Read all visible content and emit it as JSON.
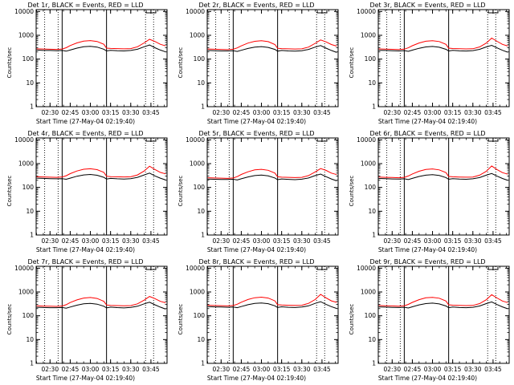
{
  "colors": {
    "events": "#000000",
    "lld": "#ff0000",
    "background": "#ffffff"
  },
  "chart_data": [
    {
      "type": "line",
      "title": "Det 1r, BLACK = Events, RED = LLD",
      "xlabel": "Start Time (27-May-04 02:19:40)",
      "ylabel": "Counts/sec",
      "xlim": [
        "02:19:40",
        "03:57:00"
      ],
      "ylim": [
        1,
        12000
      ],
      "yscale": "log",
      "xticks": [
        "02:30",
        "02:45",
        "03:00",
        "03:15",
        "03:30",
        "03:45"
      ],
      "yticks": [
        "1",
        "10",
        "100",
        "1000",
        "10000"
      ],
      "vlines_solid": [
        "02:39",
        "03:12"
      ],
      "vlines_dotted": [
        "02:26",
        "02:36",
        "03:41",
        "03:47"
      ],
      "x": [
        "02:20",
        "02:25",
        "02:30",
        "02:35",
        "02:39",
        "02:42",
        "02:45",
        "02:50",
        "02:55",
        "03:00",
        "03:05",
        "03:10",
        "03:12",
        "03:15",
        "03:20",
        "03:25",
        "03:30",
        "03:35",
        "03:40",
        "03:44",
        "03:48",
        "03:52",
        "03:56"
      ],
      "series": [
        {
          "name": "Events",
          "values": [
            240,
            230,
            230,
            225,
            230,
            215,
            240,
            290,
            330,
            345,
            320,
            260,
            220,
            235,
            225,
            220,
            230,
            260,
            330,
            390,
            300,
            240,
            200
          ]
        },
        {
          "name": "LLD",
          "values": [
            270,
            265,
            260,
            255,
            265,
            300,
            370,
            480,
            570,
            600,
            550,
            420,
            290,
            280,
            275,
            270,
            275,
            330,
            480,
            680,
            550,
            420,
            360
          ]
        }
      ]
    },
    {
      "type": "line",
      "title": "Det 2r, BLACK = Events, RED = LLD",
      "xlabel": "Start Time (27-May-04 02:19:40)",
      "ylabel": "Counts/sec",
      "xlim": [
        "02:19:40",
        "03:57:00"
      ],
      "ylim": [
        1,
        12000
      ],
      "yscale": "log",
      "xticks": [
        "02:30",
        "02:45",
        "03:00",
        "03:15",
        "03:30",
        "03:45"
      ],
      "yticks": [
        "1",
        "10",
        "100",
        "1000",
        "10000"
      ],
      "vlines_solid": [
        "02:39",
        "03:12"
      ],
      "vlines_dotted": [
        "02:26",
        "02:36",
        "03:41",
        "03:47"
      ],
      "x": [
        "02:20",
        "02:25",
        "02:30",
        "02:35",
        "02:39",
        "02:42",
        "02:45",
        "02:50",
        "02:55",
        "03:00",
        "03:05",
        "03:10",
        "03:12",
        "03:15",
        "03:20",
        "03:25",
        "03:30",
        "03:35",
        "03:40",
        "03:44",
        "03:48",
        "03:52",
        "03:56"
      ],
      "series": [
        {
          "name": "Events",
          "values": [
            230,
            225,
            220,
            220,
            225,
            210,
            235,
            280,
            320,
            335,
            310,
            255,
            215,
            230,
            220,
            215,
            225,
            255,
            320,
            370,
            290,
            230,
            190
          ]
        },
        {
          "name": "LLD",
          "values": [
            265,
            260,
            255,
            250,
            260,
            295,
            360,
            470,
            560,
            590,
            540,
            410,
            285,
            275,
            270,
            265,
            270,
            320,
            460,
            640,
            530,
            410,
            350
          ]
        }
      ]
    },
    {
      "type": "line",
      "title": "Det 3r, BLACK = Events, RED = LLD",
      "xlabel": "Start Time (27-May-04 02:19:40)",
      "ylabel": "Counts/sec",
      "xlim": [
        "02:19:40",
        "03:57:00"
      ],
      "ylim": [
        1,
        12000
      ],
      "yscale": "log",
      "xticks": [
        "02:30",
        "02:45",
        "03:00",
        "03:15",
        "03:30",
        "03:45"
      ],
      "yticks": [
        "1",
        "10",
        "100",
        "1000",
        "10000"
      ],
      "vlines_solid": [
        "02:39",
        "03:12"
      ],
      "vlines_dotted": [
        "02:26",
        "02:36",
        "03:41",
        "03:47"
      ],
      "x": [
        "02:20",
        "02:25",
        "02:30",
        "02:35",
        "02:39",
        "02:42",
        "02:45",
        "02:50",
        "02:55",
        "03:00",
        "03:05",
        "03:10",
        "03:12",
        "03:15",
        "03:20",
        "03:25",
        "03:30",
        "03:35",
        "03:40",
        "03:44",
        "03:48",
        "03:52",
        "03:56"
      ],
      "series": [
        {
          "name": "Events",
          "values": [
            235,
            230,
            225,
            220,
            228,
            212,
            238,
            285,
            325,
            340,
            315,
            258,
            218,
            232,
            222,
            218,
            228,
            258,
            325,
            380,
            295,
            235,
            195
          ]
        },
        {
          "name": "LLD",
          "values": [
            268,
            262,
            258,
            252,
            262,
            298,
            365,
            475,
            565,
            595,
            545,
            415,
            288,
            278,
            272,
            268,
            272,
            325,
            470,
            760,
            560,
            415,
            355
          ]
        }
      ]
    },
    {
      "type": "line",
      "title": "Det 4r, BLACK = Events, RED = LLD",
      "xlabel": "Start Time (27-May-04 02:19:40)",
      "ylabel": "Counts/sec",
      "xlim": [
        "02:19:40",
        "03:57:00"
      ],
      "ylim": [
        1,
        12000
      ],
      "yscale": "log",
      "xticks": [
        "02:30",
        "02:45",
        "03:00",
        "03:15",
        "03:30",
        "03:45"
      ],
      "yticks": [
        "1",
        "10",
        "100",
        "1000",
        "10000"
      ],
      "vlines_solid": [
        "02:39",
        "03:12"
      ],
      "vlines_dotted": [
        "02:26",
        "02:36",
        "03:41",
        "03:47"
      ],
      "x": [
        "02:20",
        "02:25",
        "02:30",
        "02:35",
        "02:39",
        "02:42",
        "02:45",
        "02:50",
        "02:55",
        "03:00",
        "03:05",
        "03:10",
        "03:12",
        "03:15",
        "03:20",
        "03:25",
        "03:30",
        "03:35",
        "03:40",
        "03:44",
        "03:48",
        "03:52",
        "03:56"
      ],
      "series": [
        {
          "name": "Events",
          "values": [
            245,
            240,
            235,
            230,
            235,
            220,
            245,
            295,
            335,
            350,
            325,
            265,
            225,
            240,
            230,
            225,
            235,
            265,
            335,
            400,
            305,
            245,
            205
          ]
        },
        {
          "name": "LLD",
          "values": [
            280,
            275,
            270,
            265,
            275,
            310,
            380,
            490,
            580,
            610,
            560,
            430,
            295,
            285,
            280,
            275,
            280,
            335,
            490,
            780,
            570,
            430,
            370
          ]
        }
      ]
    },
    {
      "type": "line",
      "title": "Det 5r, BLACK = Events, RED = LLD",
      "xlabel": "Start Time (27-May-04 02:19:40)",
      "ylabel": "Counts/sec",
      "xlim": [
        "02:19:40",
        "03:57:00"
      ],
      "ylim": [
        1,
        12000
      ],
      "yscale": "log",
      "xticks": [
        "02:30",
        "02:45",
        "03:00",
        "03:15",
        "03:30",
        "03:45"
      ],
      "yticks": [
        "1",
        "10",
        "100",
        "1000",
        "10000"
      ],
      "vlines_solid": [
        "02:39",
        "03:12"
      ],
      "vlines_dotted": [
        "02:26",
        "02:36",
        "03:41",
        "03:47"
      ],
      "x": [
        "02:20",
        "02:25",
        "02:30",
        "02:35",
        "02:39",
        "02:42",
        "02:45",
        "02:50",
        "02:55",
        "03:00",
        "03:05",
        "03:10",
        "03:12",
        "03:15",
        "03:20",
        "03:25",
        "03:30",
        "03:35",
        "03:40",
        "03:44",
        "03:48",
        "03:52",
        "03:56"
      ],
      "series": [
        {
          "name": "Events",
          "values": [
            225,
            220,
            215,
            215,
            220,
            205,
            230,
            275,
            315,
            330,
            305,
            250,
            212,
            228,
            218,
            212,
            222,
            250,
            315,
            365,
            285,
            228,
            188
          ]
        },
        {
          "name": "LLD",
          "values": [
            255,
            250,
            245,
            240,
            250,
            285,
            350,
            455,
            545,
            575,
            525,
            400,
            280,
            270,
            265,
            260,
            265,
            315,
            450,
            620,
            520,
            400,
            345
          ]
        }
      ]
    },
    {
      "type": "line",
      "title": "Det 6r, BLACK = Events, RED = LLD",
      "xlabel": "Start Time (27-May-04 02:19:40)",
      "ylabel": "Counts/sec",
      "xlim": [
        "02:19:40",
        "03:57:00"
      ],
      "ylim": [
        1,
        12000
      ],
      "yscale": "log",
      "xticks": [
        "02:30",
        "02:45",
        "03:00",
        "03:15",
        "03:30",
        "03:45"
      ],
      "yticks": [
        "1",
        "10",
        "100",
        "1000",
        "10000"
      ],
      "vlines_solid": [
        "02:39",
        "03:12"
      ],
      "vlines_dotted": [
        "02:26",
        "02:36",
        "03:41",
        "03:47"
      ],
      "x": [
        "02:20",
        "02:25",
        "02:30",
        "02:35",
        "02:39",
        "02:42",
        "02:45",
        "02:50",
        "02:55",
        "03:00",
        "03:05",
        "03:10",
        "03:12",
        "03:15",
        "03:20",
        "03:25",
        "03:30",
        "03:35",
        "03:40",
        "03:44",
        "03:48",
        "03:52",
        "03:56"
      ],
      "series": [
        {
          "name": "Events",
          "values": [
            238,
            232,
            228,
            224,
            230,
            214,
            240,
            288,
            328,
            342,
            318,
            260,
            220,
            234,
            224,
            220,
            230,
            260,
            328,
            385,
            298,
            238,
            198
          ]
        },
        {
          "name": "LLD",
          "values": [
            272,
            266,
            262,
            256,
            266,
            302,
            368,
            478,
            568,
            598,
            548,
            418,
            290,
            280,
            274,
            270,
            274,
            328,
            475,
            800,
            565,
            418,
            358
          ]
        }
      ]
    },
    {
      "type": "line",
      "title": "Det 7r, BLACK = Events, RED = LLD",
      "xlabel": "Start Time (27-May-04 02:19:40)",
      "ylabel": "Counts/sec",
      "xlim": [
        "02:19:40",
        "03:57:00"
      ],
      "ylim": [
        1,
        12000
      ],
      "yscale": "log",
      "xticks": [
        "02:30",
        "02:45",
        "03:00",
        "03:15",
        "03:30",
        "03:45"
      ],
      "yticks": [
        "1",
        "10",
        "100",
        "1000",
        "10000"
      ],
      "vlines_solid": [
        "02:39",
        "03:12"
      ],
      "vlines_dotted": [
        "02:26",
        "02:36",
        "03:41",
        "03:47"
      ],
      "x": [
        "02:20",
        "02:25",
        "02:30",
        "02:35",
        "02:39",
        "02:42",
        "02:45",
        "02:50",
        "02:55",
        "03:00",
        "03:05",
        "03:10",
        "03:12",
        "03:15",
        "03:20",
        "03:25",
        "03:30",
        "03:35",
        "03:40",
        "03:44",
        "03:48",
        "03:52",
        "03:56"
      ],
      "series": [
        {
          "name": "Events",
          "values": [
            228,
            222,
            218,
            218,
            222,
            208,
            232,
            278,
            318,
            332,
            308,
            252,
            214,
            230,
            220,
            214,
            224,
            252,
            318,
            372,
            288,
            230,
            190
          ]
        },
        {
          "name": "LLD",
          "values": [
            262,
            256,
            252,
            248,
            258,
            292,
            358,
            465,
            555,
            585,
            535,
            405,
            284,
            274,
            268,
            262,
            268,
            318,
            455,
            650,
            525,
            405,
            350
          ]
        }
      ]
    },
    {
      "type": "line",
      "title": "Det 8r, BLACK = Events, RED = LLD",
      "xlabel": "Start Time (27-May-04 02:19:40)",
      "ylabel": "Counts/sec",
      "xlim": [
        "02:19:40",
        "03:57:00"
      ],
      "ylim": [
        1,
        12000
      ],
      "yscale": "log",
      "xticks": [
        "02:30",
        "02:45",
        "03:00",
        "03:15",
        "03:30",
        "03:45"
      ],
      "yticks": [
        "1",
        "10",
        "100",
        "1000",
        "10000"
      ],
      "vlines_solid": [
        "02:39",
        "03:12"
      ],
      "vlines_dotted": [
        "02:26",
        "02:36",
        "03:41",
        "03:47"
      ],
      "x": [
        "02:20",
        "02:25",
        "02:30",
        "02:35",
        "02:39",
        "02:42",
        "02:45",
        "02:50",
        "02:55",
        "03:00",
        "03:05",
        "03:10",
        "03:12",
        "03:15",
        "03:20",
        "03:25",
        "03:30",
        "03:35",
        "03:40",
        "03:44",
        "03:48",
        "03:52",
        "03:56"
      ],
      "series": [
        {
          "name": "Events",
          "values": [
            242,
            236,
            232,
            228,
            234,
            218,
            244,
            292,
            332,
            346,
            322,
            262,
            222,
            238,
            228,
            222,
            232,
            262,
            332,
            392,
            302,
            242,
            202
          ]
        },
        {
          "name": "LLD",
          "values": [
            276,
            270,
            266,
            260,
            270,
            306,
            372,
            484,
            574,
            604,
            554,
            424,
            292,
            282,
            276,
            272,
            276,
            332,
            482,
            790,
            568,
            424,
            364
          ]
        }
      ]
    },
    {
      "type": "line",
      "title": "Det 9r, BLACK = Events, RED = LLD",
      "xlabel": "Start Time (27-May-04 02:19:40)",
      "ylabel": "Counts/sec",
      "xlim": [
        "02:19:40",
        "03:57:00"
      ],
      "ylim": [
        1,
        12000
      ],
      "yscale": "log",
      "xticks": [
        "02:30",
        "02:45",
        "03:00",
        "03:15",
        "03:30",
        "03:45"
      ],
      "yticks": [
        "1",
        "10",
        "100",
        "1000",
        "10000"
      ],
      "vlines_solid": [
        "02:39",
        "03:12"
      ],
      "vlines_dotted": [
        "02:26",
        "02:36",
        "03:41",
        "03:47"
      ],
      "x": [
        "02:20",
        "02:25",
        "02:30",
        "02:35",
        "02:39",
        "02:42",
        "02:45",
        "02:50",
        "02:55",
        "03:00",
        "03:05",
        "03:10",
        "03:12",
        "03:15",
        "03:20",
        "03:25",
        "03:30",
        "03:35",
        "03:40",
        "03:44",
        "03:48",
        "03:52",
        "03:56"
      ],
      "series": [
        {
          "name": "Events",
          "values": [
            236,
            230,
            226,
            222,
            228,
            212,
            238,
            286,
            326,
            340,
            316,
            258,
            218,
            232,
            222,
            218,
            228,
            258,
            326,
            382,
            296,
            236,
            196
          ]
        },
        {
          "name": "LLD",
          "values": [
            270,
            264,
            260,
            254,
            264,
            300,
            366,
            476,
            566,
            596,
            546,
            416,
            288,
            278,
            272,
            268,
            272,
            326,
            472,
            770,
            560,
            416,
            356
          ]
        }
      ]
    }
  ]
}
